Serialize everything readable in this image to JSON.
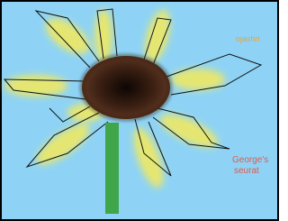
{
  "texts": {
    "signature": "ojashri",
    "caption_line1": "George's",
    "caption_line2": "seurat"
  }
}
